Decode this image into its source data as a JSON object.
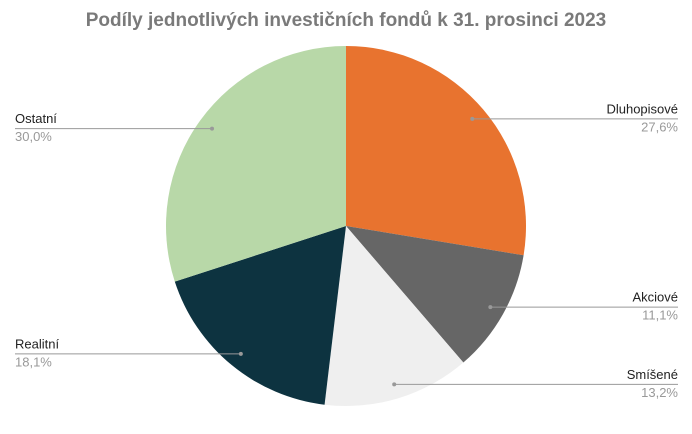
{
  "chart_data": {
    "type": "pie",
    "title": "Podíly jednotlivých investičních fondů k 31. prosinci 2023",
    "categories": [
      "Dluhopisové",
      "Akciové",
      "Smíšené",
      "Realitní",
      "Ostatní"
    ],
    "values": [
      27.6,
      11.1,
      13.2,
      18.1,
      30.0
    ],
    "value_labels": [
      "27,6%",
      "11,1%",
      "13,2%",
      "18,1%",
      "30,0%"
    ],
    "colors": [
      "#e8732f",
      "#666666",
      "#efefef",
      "#0d3340",
      "#b8d8a8"
    ]
  }
}
